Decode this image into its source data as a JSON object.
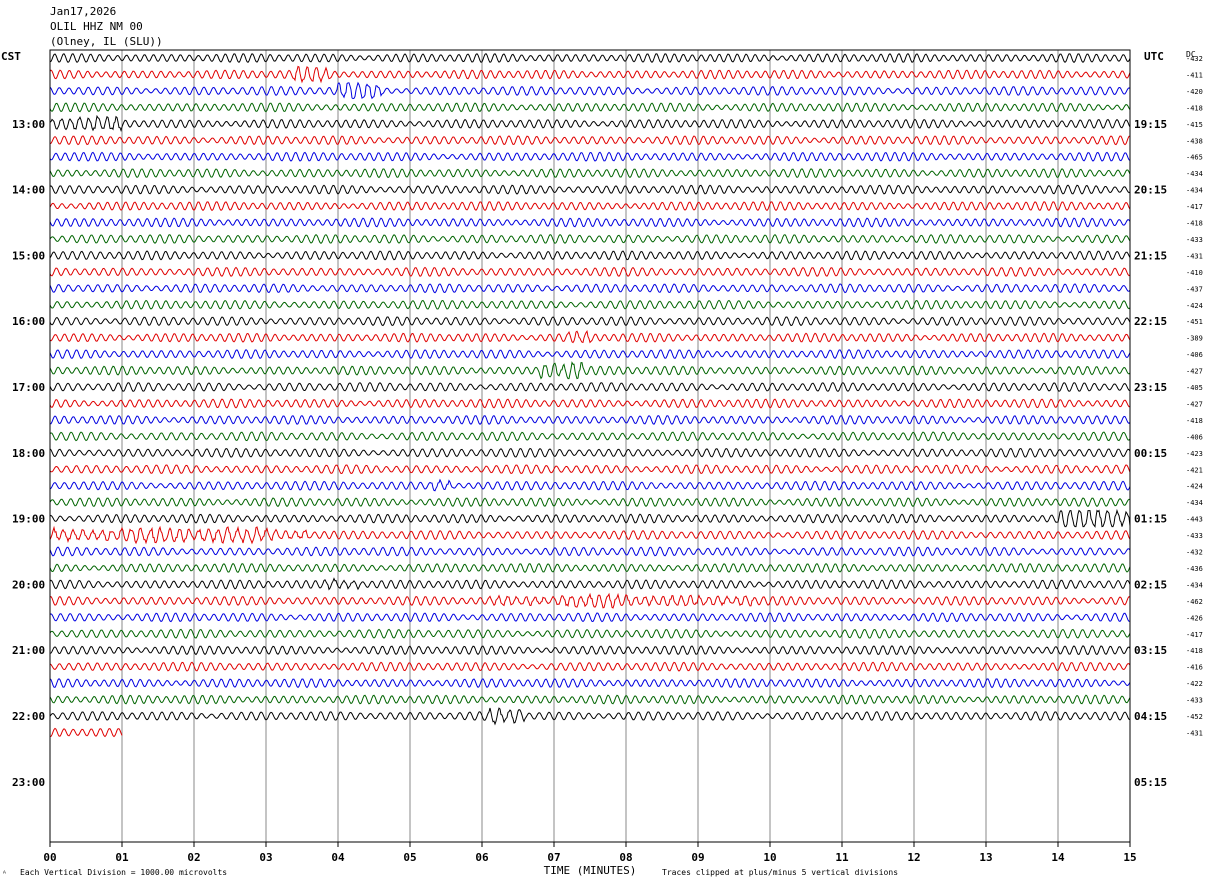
{
  "header": {
    "date": "Jan17,2026",
    "station": "OLIL HHZ NM 00",
    "location": "(Olney, IL (SLU))"
  },
  "left_zone": "CST",
  "right_zone": "UTC",
  "dc_label": "DC",
  "footer": {
    "scale_note": "Each Vertical Division = 1000.00 microvolts",
    "clip_note": "Traces clipped at plus/minus 5 vertical divisions",
    "corner_mark": "ᴬ"
  },
  "colors": [
    "#000000",
    "#e00000",
    "#0000e0",
    "#006400"
  ],
  "chart_data": {
    "type": "line",
    "title": "OLIL HHZ NM 00",
    "xlabel": "TIME (MINUTES)",
    "ylabel": "",
    "x_ticks": [
      "00",
      "01",
      "02",
      "03",
      "04",
      "05",
      "06",
      "07",
      "08",
      "09",
      "10",
      "11",
      "12",
      "13",
      "14",
      "15"
    ],
    "xlim": [
      0,
      15
    ],
    "left_hour_labels": [
      "13:00",
      "14:00",
      "15:00",
      "16:00",
      "17:00",
      "18:00",
      "19:00",
      "20:00",
      "21:00",
      "22:00",
      "23:00"
    ],
    "right_hour_labels": [
      "19:15",
      "20:15",
      "21:15",
      "22:15",
      "23:15",
      "00:15",
      "01:15",
      "02:15",
      "03:15",
      "04:15",
      "05:15"
    ],
    "dc_offsets": [
      -432,
      -411,
      -420,
      -418,
      -415,
      -438,
      -465,
      -434,
      -434,
      -417,
      -418,
      -433,
      -431,
      -410,
      -437,
      -424,
      -451,
      -389,
      -406,
      -427,
      -405,
      -427,
      -418,
      -406,
      -423,
      -421,
      -424,
      -434,
      -443,
      -433,
      -432,
      -436,
      -434,
      -462,
      -426,
      -417,
      -418,
      -416,
      -422,
      -433,
      -452,
      -431
    ],
    "partial_last_trace_minutes": 1,
    "bursts": [
      {
        "trace": 4,
        "x": [
          0.0,
          1.0
        ],
        "amp": 1.5
      },
      {
        "trace": 1,
        "x": [
          3.4,
          3.9
        ],
        "amp": 1.6
      },
      {
        "trace": 2,
        "x": [
          4.0,
          4.6
        ],
        "amp": 2.0
      },
      {
        "trace": 19,
        "x": [
          6.8,
          7.4
        ],
        "amp": 2.3
      },
      {
        "trace": 17,
        "x": [
          7.2,
          7.5
        ],
        "amp": 1.4
      },
      {
        "trace": 26,
        "x": [
          5.3,
          5.6
        ],
        "amp": 1.5
      },
      {
        "trace": 29,
        "x": [
          0.0,
          3.6
        ],
        "amp": 1.6
      },
      {
        "trace": 28,
        "x": [
          14.0,
          15.0
        ],
        "amp": 2.2
      },
      {
        "trace": 32,
        "x": [
          3.8,
          4.3
        ],
        "amp": 1.6
      },
      {
        "trace": 33,
        "x": [
          6.1,
          9.8
        ],
        "amp": 1.3
      },
      {
        "trace": 40,
        "x": [
          6.1,
          6.6
        ],
        "amp": 1.5
      }
    ]
  }
}
